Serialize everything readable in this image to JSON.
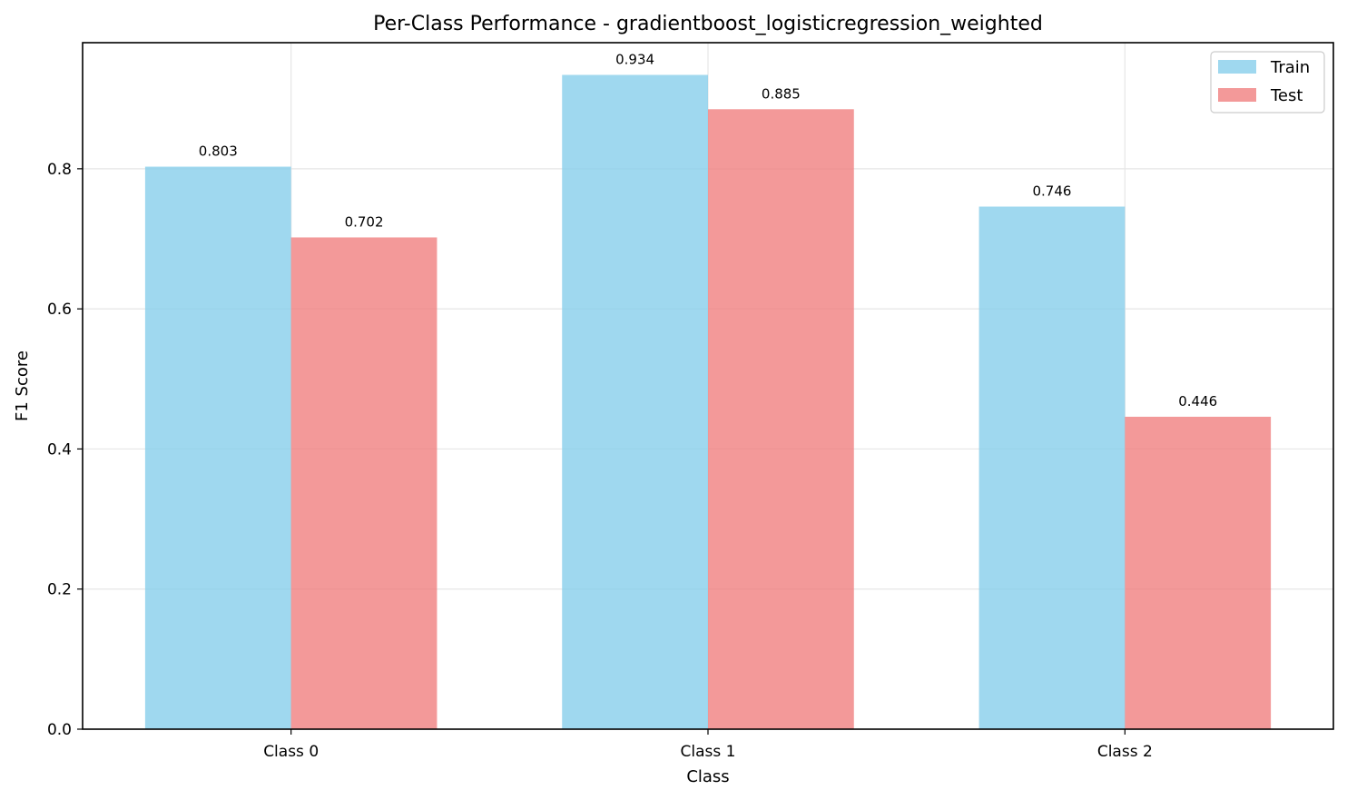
{
  "chart_data": {
    "type": "bar",
    "title": "Per-Class Performance - gradientboost_logisticregression_weighted",
    "xlabel": "Class",
    "ylabel": "F1 Score",
    "categories": [
      "Class 0",
      "Class 1",
      "Class 2"
    ],
    "series": [
      {
        "name": "Train",
        "values": [
          0.803,
          0.934,
          0.746
        ],
        "labels": [
          "0.803",
          "0.934",
          "0.746"
        ],
        "color": "#87CEEB"
      },
      {
        "name": "Test",
        "values": [
          0.702,
          0.885,
          0.446
        ],
        "labels": [
          "0.702",
          "0.885",
          "0.446"
        ],
        "color": "#F08080"
      }
    ],
    "ylim": [
      0,
      0.98
    ],
    "yticks": [
      0.0,
      0.2,
      0.4,
      0.6,
      0.8
    ],
    "ytick_labels": [
      "0.0",
      "0.2",
      "0.4",
      "0.6",
      "0.8"
    ],
    "grid": true,
    "legend_position": "top-right"
  }
}
